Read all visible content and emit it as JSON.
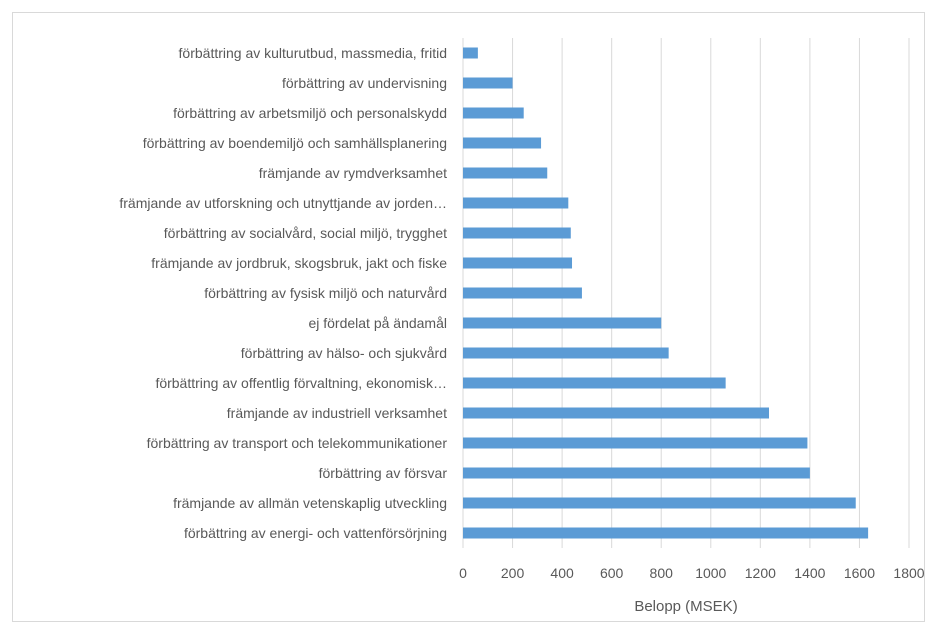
{
  "chart_data": {
    "type": "bar",
    "orientation": "horizontal",
    "categories": [
      "förbättring av kulturutbud, massmedia, fritid",
      "förbättring av undervisning",
      "förbättring av arbetsmiljö och personalskydd",
      "förbättring av boendemiljö och samhällsplanering",
      "främjande av rymdverksamhet",
      "främjande av utforskning och utnyttjande av jorden…",
      "förbättring av socialvård, social miljö, trygghet",
      "främjande av jordbruk, skogsbruk, jakt och fiske",
      "förbättring av fysisk miljö och naturvård",
      "ej fördelat på ändamål",
      "förbättring av hälso- och sjukvård",
      "förbättring av offentlig förvaltning, ekonomisk…",
      "främjande av industriell verksamhet",
      "förbättring av transport och telekommunikationer",
      "förbättring av försvar",
      "främjande av allmän vetenskaplig utveckling",
      "förbättring av energi- och vattenförsörjning"
    ],
    "values": [
      60,
      200,
      245,
      315,
      340,
      425,
      435,
      440,
      480,
      800,
      830,
      1060,
      1235,
      1390,
      1400,
      1585,
      1635
    ],
    "xlabel": "Belopp (MSEK)",
    "ylabel": "",
    "title": "",
    "xlim": [
      0,
      1800
    ],
    "xticks": [
      "0",
      "200",
      "400",
      "600",
      "800",
      "1000",
      "1200",
      "1400",
      "1600",
      "1800"
    ],
    "grid": "vertical",
    "bar_color": "#5b9bd5"
  }
}
